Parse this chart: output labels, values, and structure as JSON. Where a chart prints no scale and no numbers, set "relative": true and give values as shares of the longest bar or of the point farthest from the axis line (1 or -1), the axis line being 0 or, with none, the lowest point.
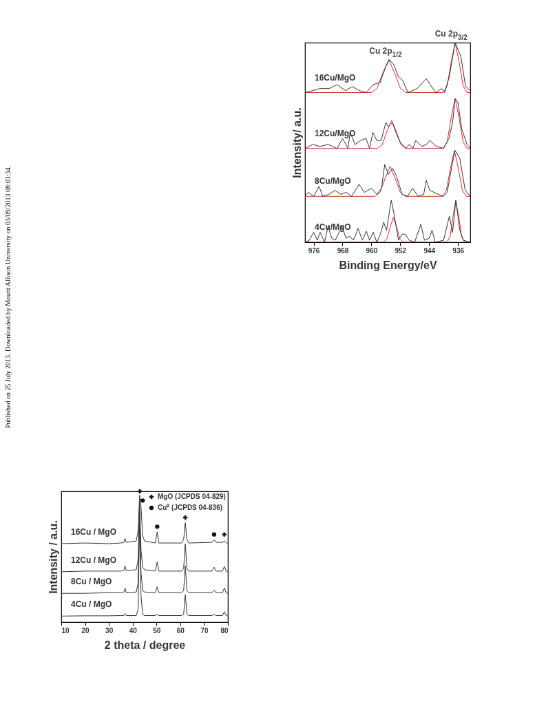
{
  "chart_data": [
    {
      "type": "line",
      "relative": true,
      "xlabel": "Binding Energy/eV",
      "ylabel": "Intensity/ a.u.",
      "xlim": [
        978.4,
        932.6
      ],
      "xticks": [
        976,
        968,
        960,
        952,
        944,
        936
      ],
      "tick_labels": "x",
      "grid": false,
      "legend": false,
      "annotations": [
        {
          "text": "Cu 2p$_{1/2}$",
          "x": 955.0,
          "y": 0.915
        },
        {
          "text": "Cu 2p$_{3/2}$",
          "x": 936.8,
          "y": 1.0
        }
      ],
      "series": [
        {
          "name": "16Cu/MgO",
          "color": "#333333",
          "x": [
            978.4,
            976.2,
            974.3,
            971.7,
            969.5,
            967.2,
            965.3,
            963.4,
            961.4,
            959.5,
            957.6,
            956.0,
            955.0,
            953.8,
            952.5,
            951.3,
            949.9,
            947.3,
            944.8,
            942.2,
            940.5,
            939.7,
            938.4,
            936.8,
            935.2,
            933.9,
            932.6
          ],
          "values": [
            0.75,
            0.76,
            0.77,
            0.77,
            0.79,
            0.76,
            0.78,
            0.76,
            0.75,
            0.79,
            0.8,
            0.88,
            0.915,
            0.89,
            0.83,
            0.81,
            0.75,
            0.77,
            0.82,
            0.75,
            0.77,
            0.75,
            0.83,
            1.0,
            0.93,
            0.78,
            0.76
          ]
        },
        {
          "color": "#d03030",
          "x": [
            978.4,
            960.0,
            958.4,
            956.8,
            955.2,
            953.6,
            952.0,
            950.4,
            940.1,
            939.0,
            937.9,
            936.8,
            935.7,
            934.6,
            933.5,
            932.6
          ],
          "values": [
            0.75,
            0.75,
            0.772,
            0.85,
            0.915,
            0.85,
            0.772,
            0.75,
            0.75,
            0.784,
            0.903,
            1.0,
            0.903,
            0.784,
            0.75,
            0.75
          ]
        },
        {
          "name": "12Cu/MgO",
          "color": "#333333",
          "x": [
            978.4,
            976.2,
            974.3,
            972.0,
            969.5,
            968.0,
            966.5,
            965.9,
            964.5,
            963.0,
            961.5,
            960.5,
            959.6,
            958.5,
            957.3,
            956.0,
            955.3,
            954.2,
            953.2,
            952.0,
            950.5,
            949.5,
            948.5,
            947.7,
            946.0,
            944.8,
            943.8,
            942.0,
            940.0,
            938.5,
            937.5,
            936.8,
            936.0,
            935.0,
            933.5,
            932.6
          ],
          "values": [
            0.47,
            0.49,
            0.48,
            0.49,
            0.47,
            0.52,
            0.47,
            0.55,
            0.49,
            0.51,
            0.52,
            0.47,
            0.55,
            0.51,
            0.51,
            0.6,
            0.58,
            0.6,
            0.55,
            0.5,
            0.47,
            0.49,
            0.47,
            0.51,
            0.48,
            0.49,
            0.51,
            0.48,
            0.47,
            0.52,
            0.6,
            0.72,
            0.7,
            0.57,
            0.49,
            0.47
          ]
        },
        {
          "color": "#d03030",
          "x": [
            978.4,
            958.3,
            957.0,
            955.7,
            954.4,
            953.1,
            951.8,
            950.5,
            940.1,
            939.0,
            937.9,
            936.8,
            935.7,
            934.6,
            933.5,
            932.6
          ],
          "values": [
            0.47,
            0.47,
            0.489,
            0.555,
            0.61,
            0.555,
            0.489,
            0.47,
            0.47,
            0.504,
            0.623,
            0.72,
            0.623,
            0.504,
            0.47,
            0.47
          ]
        },
        {
          "name": "8Cu/MgO",
          "color": "#333333",
          "x": [
            978.4,
            977.5,
            976.0,
            974.5,
            973.5,
            971.8,
            970.0,
            968.5,
            967.0,
            965.5,
            963.4,
            962.0,
            960.0,
            958.5,
            957.2,
            956.3,
            955.3,
            954.1,
            953.0,
            951.5,
            950.0,
            948.6,
            947.0,
            945.5,
            944.8,
            943.8,
            941.5,
            940.0,
            939.0,
            937.5,
            936.8,
            935.5,
            934.0,
            932.6
          ],
          "values": [
            0.23,
            0.25,
            0.23,
            0.28,
            0.23,
            0.24,
            0.26,
            0.24,
            0.25,
            0.23,
            0.29,
            0.25,
            0.27,
            0.24,
            0.27,
            0.39,
            0.34,
            0.37,
            0.33,
            0.24,
            0.23,
            0.27,
            0.23,
            0.24,
            0.31,
            0.26,
            0.24,
            0.23,
            0.25,
            0.4,
            0.46,
            0.42,
            0.26,
            0.23
          ]
        },
        {
          "color": "#d03030",
          "x": [
            978.4,
            959.0,
            957.6,
            956.2,
            954.8,
            953.4,
            952.0,
            950.6,
            940.3,
            939.2,
            938.1,
            937.0,
            935.9,
            934.8,
            933.7,
            932.6
          ],
          "values": [
            0.23,
            0.23,
            0.25,
            0.32,
            0.38,
            0.32,
            0.25,
            0.23,
            0.23,
            0.261,
            0.37,
            0.46,
            0.37,
            0.261,
            0.23,
            0.23
          ]
        },
        {
          "name": "4Cu/MgO",
          "color": "#333333",
          "x": [
            978.4,
            977.2,
            976.0,
            975.0,
            974.2,
            973.0,
            972.0,
            971.0,
            970.0,
            968.2,
            967.0,
            966.0,
            965.0,
            964.3,
            963.7,
            962.5,
            961.4,
            960.5,
            959.5,
            958.5,
            957.5,
            956.6,
            955.8,
            954.5,
            953.8,
            952.5,
            951.5,
            950.6,
            949.5,
            948.0,
            946.3,
            945.3,
            944.0,
            943.2,
            942.3,
            940.0,
            938.4,
            937.5,
            936.6,
            935.5,
            934.5,
            932.6
          ],
          "values": [
            0.0,
            0.01,
            0.05,
            0.01,
            0.05,
            0.0,
            0.08,
            0.02,
            0.01,
            0.08,
            0.02,
            0.03,
            0.01,
            0.04,
            0.07,
            0.01,
            0.055,
            0.01,
            0.05,
            0.0,
            0.04,
            0.1,
            0.06,
            0.21,
            0.15,
            0.01,
            0.04,
            0.04,
            0.01,
            0.0,
            0.09,
            0.01,
            0.02,
            0.06,
            0.0,
            0.01,
            0.13,
            0.05,
            0.21,
            0.06,
            0.01,
            0.0
          ]
        },
        {
          "color": "#d03030",
          "x": [
            978.4,
            956.6,
            955.7,
            954.8,
            953.9,
            953.0,
            952.1,
            951.2,
            939.0,
            938.2,
            937.4,
            936.6,
            935.8,
            935.0,
            934.2,
            932.6
          ],
          "values": [
            0.0,
            0.0,
            0.017,
            0.076,
            0.125,
            0.076,
            0.017,
            0.0,
            0.0,
            0.028,
            0.128,
            0.21,
            0.128,
            0.028,
            0.0,
            0.0
          ]
        }
      ]
    },
    {
      "type": "line",
      "relative": true,
      "xlabel": "2 theta / degree",
      "ylabel": "Intensity / a.u.",
      "xlim": [
        10,
        80
      ],
      "xticks": [
        10,
        20,
        30,
        40,
        50,
        60,
        70,
        80
      ],
      "tick_labels": "x",
      "grid": false,
      "legend": "top right",
      "annotations": [
        "Published on 25 July 2013. Downloaded by Mount Allison University on 03/09/2013 08:03:34."
      ],
      "x": [
        10,
        20,
        30,
        35,
        36.3,
        36.8,
        37.3,
        41.5,
        42.3,
        42.9,
        43.5,
        44.2,
        45,
        49.5,
        50.3,
        51,
        60.5,
        61.4,
        62.1,
        62.8,
        63.6,
        73.3,
        74.2,
        75,
        77.7,
        78.5,
        79.3,
        80
      ],
      "series": [
        {
          "name": "16Cu / MgO",
          "color": "#333333",
          "values": [
            0.6,
            0.605,
            0.6,
            0.605,
            0.61,
            0.64,
            0.61,
            0.62,
            0.7,
            0.97,
            0.88,
            0.66,
            0.62,
            0.605,
            0.69,
            0.605,
            0.605,
            0.63,
            0.76,
            0.63,
            0.605,
            0.61,
            0.63,
            0.61,
            0.61,
            0.62,
            0.61,
            0.6
          ]
        },
        {
          "name": "12Cu / MgO",
          "color": "#333333",
          "values": [
            0.385,
            0.39,
            0.39,
            0.39,
            0.395,
            0.43,
            0.395,
            0.4,
            0.48,
            0.92,
            0.55,
            0.42,
            0.4,
            0.39,
            0.46,
            0.39,
            0.39,
            0.41,
            0.6,
            0.41,
            0.39,
            0.39,
            0.42,
            0.39,
            0.39,
            0.425,
            0.39,
            0.385
          ]
        },
        {
          "name": "8Cu / MgO",
          "color": "#333333",
          "values": [
            0.22,
            0.22,
            0.225,
            0.225,
            0.23,
            0.26,
            0.225,
            0.23,
            0.3,
            0.85,
            0.38,
            0.24,
            0.23,
            0.225,
            0.27,
            0.225,
            0.225,
            0.24,
            0.43,
            0.24,
            0.225,
            0.225,
            0.245,
            0.225,
            0.225,
            0.26,
            0.225,
            0.22
          ]
        },
        {
          "name": "4Cu / MgO",
          "color": "#333333",
          "values": [
            0.046,
            0.048,
            0.048,
            0.05,
            0.05,
            0.065,
            0.05,
            0.05,
            0.1,
            0.8,
            0.2,
            0.06,
            0.05,
            0.05,
            0.06,
            0.05,
            0.05,
            0.06,
            0.21,
            0.06,
            0.05,
            0.05,
            0.06,
            0.05,
            0.05,
            0.08,
            0.05,
            0.046
          ]
        },
        {
          "name": "MgO (JCPDS 04-829)",
          "type": "scatter",
          "marker": "cross",
          "color": "#111111",
          "x": [
            43,
            62.1,
            78.5
          ],
          "values": [
            1.0,
            0.8,
            0.67
          ]
        },
        {
          "name": "Cu⁰ (JCPDS 04-836)",
          "type": "scatter",
          "marker": "circle",
          "color": "#111111",
          "x": [
            44.2,
            50.3,
            74.2
          ],
          "values": [
            0.93,
            0.73,
            0.67
          ]
        }
      ]
    }
  ]
}
